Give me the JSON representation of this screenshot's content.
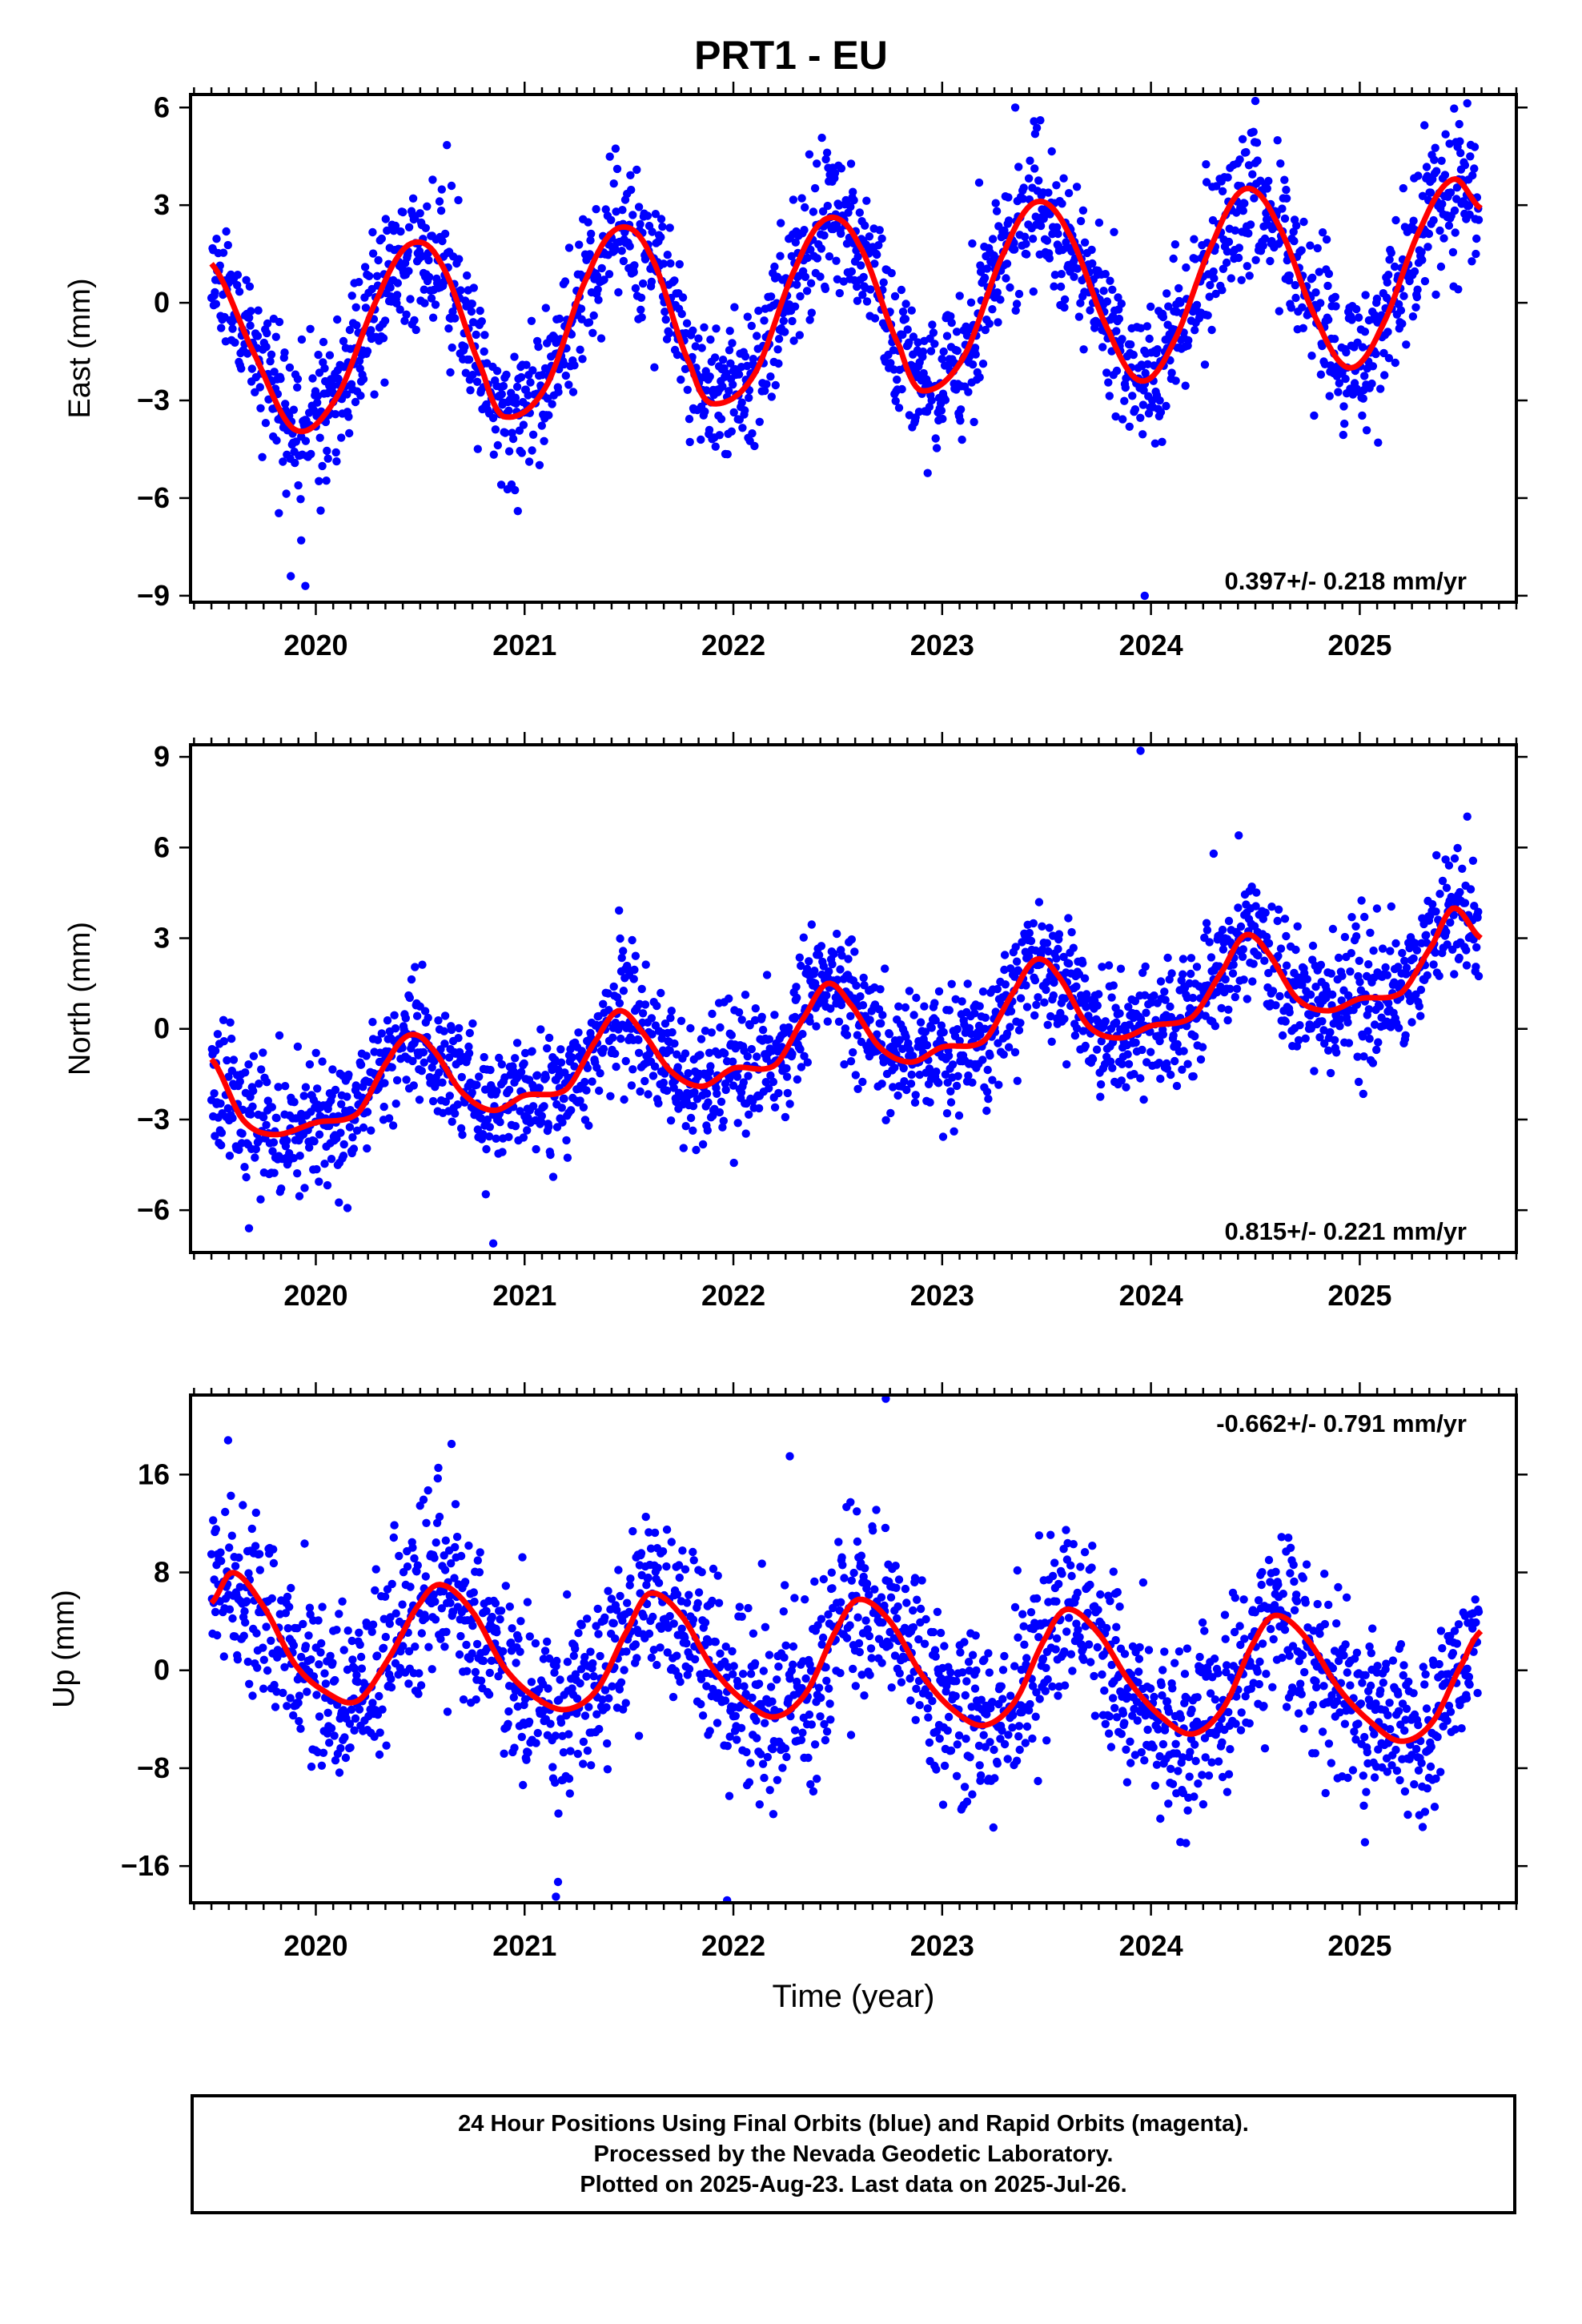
{
  "title": "PRT1 - EU",
  "colors": {
    "points": "#0000ff",
    "fit": "#ff0000",
    "axis": "#000000"
  },
  "chart_data": [
    {
      "type": "scatter",
      "panel": "east",
      "title": "",
      "xlabel": "",
      "ylabel": "East (mm)",
      "xlim": [
        2019.4,
        2025.75
      ],
      "ylim": [
        -9.2,
        6.4
      ],
      "yticks": [
        6,
        3,
        0,
        -3,
        -6,
        -9
      ],
      "ytick_labels": [
        "6",
        "3",
        "0",
        "−3",
        "−6",
        "−9"
      ],
      "xticks": [
        2020,
        2021,
        2022,
        2023,
        2024,
        2025
      ],
      "xtick_labels": [
        "2020",
        "2021",
        "2022",
        "2023",
        "2024",
        "2025"
      ],
      "rate_label": "0.397+/- 0.218 mm/yr",
      "rate_position": "bottom-right",
      "series": [
        {
          "kind": "points",
          "color": "#0000ff",
          "trend": 0.397,
          "amplitude": 2.9,
          "phase": -1.57,
          "offset": -0.9,
          "noise": 1.1,
          "seed": 11,
          "outliers": [
            [
              2019.95,
              -8.7
            ],
            [
              2019.88,
              -8.4
            ],
            [
              2023.97,
              -9.0
            ],
            [
              2024.5,
              6.2
            ],
            [
              2023.35,
              6.0
            ],
            [
              2019.93,
              -7.3
            ]
          ]
        },
        {
          "kind": "fit",
          "name": "",
          "color": "#ff0000",
          "x": [
            2019.5,
            2019.7,
            2019.9,
            2020.1,
            2020.3,
            2020.45,
            2020.6,
            2020.8,
            2020.9,
            2021.1,
            2021.3,
            2021.45,
            2021.6,
            2021.8,
            2021.9,
            2022.1,
            2022.3,
            2022.45,
            2022.6,
            2022.8,
            2022.9,
            2023.1,
            2023.3,
            2023.45,
            2023.6,
            2023.8,
            2023.95,
            2024.1,
            2024.3,
            2024.45,
            2024.6,
            2024.8,
            2024.95,
            2025.1,
            2025.3,
            2025.45,
            2025.58
          ],
          "y": [
            1.2,
            -1.5,
            -3.9,
            -2.9,
            0.2,
            1.8,
            1.2,
            -2.1,
            -3.5,
            -2.6,
            0.8,
            2.3,
            1.5,
            -2.0,
            -3.1,
            -2.2,
            1.1,
            2.6,
            1.8,
            -1.4,
            -2.7,
            -1.7,
            1.6,
            3.1,
            2.2,
            -0.9,
            -2.4,
            -1.3,
            1.9,
            3.5,
            2.5,
            -0.6,
            -2.0,
            -0.8,
            2.4,
            3.8,
            2.9
          ]
        }
      ]
    },
    {
      "type": "scatter",
      "panel": "north",
      "title": "",
      "xlabel": "",
      "ylabel": "North (mm)",
      "xlim": [
        2019.4,
        2025.75
      ],
      "ylim": [
        -7.4,
        9.4
      ],
      "yticks": [
        9,
        6,
        3,
        0,
        -3,
        -6
      ],
      "ytick_labels": [
        "9",
        "6",
        "3",
        "0",
        "−3",
        "−6"
      ],
      "xticks": [
        2020,
        2021,
        2022,
        2023,
        2024,
        2025
      ],
      "xtick_labels": [
        "2020",
        "2021",
        "2022",
        "2023",
        "2024",
        "2025"
      ],
      "rate_label": "0.815+/- 0.221 mm/yr",
      "rate_position": "bottom-right",
      "series": [
        {
          "kind": "points",
          "color": "#0000ff",
          "trend": 0.815,
          "amplitude": 1.6,
          "phase": -1.57,
          "offset": -2.6,
          "noise": 1.05,
          "seed": 23,
          "outliers": [
            [
              2023.95,
              9.2
            ],
            [
              2024.42,
              6.4
            ],
            [
              2020.85,
              -7.1
            ],
            [
              2019.68,
              -6.6
            ],
            [
              2024.3,
              5.8
            ]
          ]
        },
        {
          "kind": "fit",
          "name": "",
          "color": "#ff0000",
          "x": [
            2019.5,
            2019.65,
            2019.8,
            2020.0,
            2020.2,
            2020.35,
            2020.45,
            2020.55,
            2020.7,
            2020.85,
            2021.0,
            2021.2,
            2021.35,
            2021.45,
            2021.55,
            2021.7,
            2021.85,
            2022.0,
            2022.2,
            2022.35,
            2022.45,
            2022.55,
            2022.7,
            2022.85,
            2023.0,
            2023.2,
            2023.35,
            2023.45,
            2023.55,
            2023.7,
            2023.85,
            2024.0,
            2024.2,
            2024.35,
            2024.45,
            2024.55,
            2024.7,
            2024.85,
            2025.0,
            2025.2,
            2025.35,
            2025.45,
            2025.58
          ],
          "y": [
            -1.0,
            -3.0,
            -3.5,
            -3.1,
            -2.8,
            -1.0,
            -0.2,
            -0.6,
            -2.1,
            -2.7,
            -2.2,
            -2.0,
            -0.3,
            0.6,
            0.0,
            -1.4,
            -1.9,
            -1.3,
            -1.2,
            0.5,
            1.5,
            0.9,
            -0.6,
            -1.1,
            -0.6,
            -0.4,
            1.3,
            2.3,
            1.8,
            0.1,
            -0.3,
            0.1,
            0.4,
            2.0,
            3.1,
            2.6,
            1.0,
            0.6,
            1.0,
            1.2,
            2.8,
            4.0,
            3.0
          ]
        }
      ]
    },
    {
      "type": "scatter",
      "panel": "up",
      "title": "",
      "xlabel": "Time (year)",
      "ylabel": "Up (mm)",
      "xlim": [
        2019.4,
        2025.75
      ],
      "ylim": [
        -19.0,
        22.5
      ],
      "yticks": [
        16,
        8,
        0,
        -8,
        -16
      ],
      "ytick_labels": [
        "16",
        "8",
        "0",
        "−8",
        "−16"
      ],
      "xticks": [
        2020,
        2021,
        2022,
        2023,
        2024,
        2025
      ],
      "xtick_labels": [
        "2020",
        "2021",
        "2022",
        "2023",
        "2024",
        "2025"
      ],
      "rate_label": "-0.662+/- 0.791 mm/yr",
      "rate_position": "top-right",
      "series": [
        {
          "kind": "points",
          "color": "#0000ff",
          "trend": -0.662,
          "amplitude": 5.5,
          "phase": -2.8,
          "offset": 2.2,
          "noise": 3.6,
          "seed": 47,
          "outliers": [
            [
              2022.73,
              22.2
            ],
            [
              2019.58,
              18.8
            ],
            [
              2021.15,
              -18.5
            ],
            [
              2021.97,
              -18.8
            ],
            [
              2020.65,
              18.5
            ],
            [
              2021.16,
              -17.3
            ],
            [
              2022.27,
              17.5
            ]
          ]
        },
        {
          "kind": "fit",
          "name": "",
          "color": "#ff0000",
          "x": [
            2019.5,
            2019.6,
            2019.75,
            2019.9,
            2020.05,
            2020.2,
            2020.35,
            2020.5,
            2020.6,
            2020.75,
            2020.9,
            2021.05,
            2021.2,
            2021.35,
            2021.5,
            2021.6,
            2021.75,
            2021.9,
            2022.05,
            2022.2,
            2022.35,
            2022.5,
            2022.6,
            2022.75,
            2022.9,
            2023.05,
            2023.2,
            2023.35,
            2023.5,
            2023.6,
            2023.75,
            2023.9,
            2024.05,
            2024.2,
            2024.35,
            2024.5,
            2024.6,
            2024.75,
            2024.9,
            2025.05,
            2025.2,
            2025.35,
            2025.5,
            2025.58
          ],
          "y": [
            5.5,
            8.0,
            5.2,
            0.5,
            -1.8,
            -2.5,
            1.0,
            5.5,
            7.0,
            4.8,
            0.3,
            -2.2,
            -3.2,
            -1.5,
            3.5,
            6.3,
            4.5,
            0.2,
            -2.5,
            -3.8,
            -1.8,
            3.5,
            5.8,
            4.0,
            -0.3,
            -3.2,
            -4.5,
            -2.5,
            2.8,
            5.0,
            3.0,
            -1.0,
            -3.8,
            -5.2,
            -3.0,
            2.5,
            4.5,
            2.5,
            -1.5,
            -4.2,
            -5.8,
            -4.2,
            0.8,
            3.2
          ]
        }
      ]
    }
  ],
  "footer": {
    "line1": "24 Hour Positions Using Final Orbits (blue) and Rapid Orbits (magenta).",
    "line2": "Processed by the Nevada Geodetic Laboratory.",
    "line3": "Plotted on 2025-Aug-23. Last data on 2025-Jul-26."
  }
}
